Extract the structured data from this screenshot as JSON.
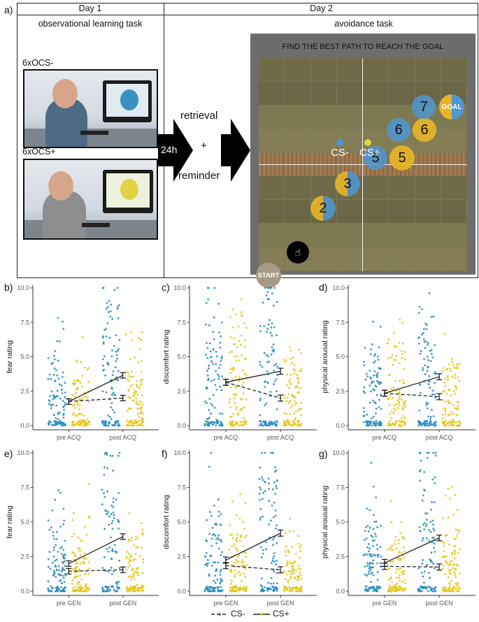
{
  "top": {
    "panel_label": "a)",
    "day1": "Day 1",
    "day2": "Day 2",
    "day1_task": "observational learning task",
    "day2_task": "avoidance task",
    "ocs_minus": "6xOCS-",
    "ocs_plus": "6xOCS+",
    "time": "24h",
    "retrieval": "retrieval",
    "plus": "+",
    "reminder": "reminder",
    "game_title": "FIND THE BEST PATH TO REACH THE GOAL",
    "cs_minus": "CS-",
    "cs_plus": "CS+",
    "start": "START",
    "goal": "GOAL",
    "steps": [
      "2",
      "3",
      "5",
      "5",
      "6",
      "6",
      "7"
    ]
  },
  "legend": {
    "cs_minus": "CS-",
    "cs_plus": "CS+"
  },
  "colors": {
    "cs_minus": "#2b8cbe",
    "cs_plus": "#e6c619",
    "mean_line": "#222222",
    "panel_border": "#222222",
    "game_bg": "#6d6d6d"
  },
  "chart_data": [
    {
      "panel": "b)",
      "type": "scatter",
      "ylabel": "fear rating",
      "categories": [
        "pre ACQ",
        "post ACQ"
      ],
      "ylim": [
        0,
        10
      ],
      "yticks": [
        "0.0",
        "2.5",
        "5.0",
        "7.5",
        "10.0"
      ],
      "series": [
        {
          "name": "CS-",
          "mean": [
            1.75,
            3.65
          ],
          "err": [
            0.2,
            0.2
          ]
        },
        {
          "name": "CS+",
          "mean": [
            1.75,
            2.0
          ],
          "err": [
            0.2,
            0.2
          ]
        }
      ]
    },
    {
      "panel": "c)",
      "type": "scatter",
      "ylabel": "discomfort rating",
      "categories": [
        "pre ACQ",
        "post ACQ"
      ],
      "ylim": [
        0,
        10
      ],
      "yticks": [
        "0.0",
        "2.5",
        "5.0",
        "7.5",
        "10.0"
      ],
      "series": [
        {
          "name": "CS-",
          "mean": [
            3.15,
            3.95
          ],
          "err": [
            0.22,
            0.22
          ]
        },
        {
          "name": "CS+",
          "mean": [
            3.15,
            2.0
          ],
          "err": [
            0.22,
            0.22
          ]
        }
      ]
    },
    {
      "panel": "d)",
      "type": "scatter",
      "ylabel": "physical arousal rating",
      "categories": [
        "pre ACQ",
        "post ACQ"
      ],
      "ylim": [
        0,
        10
      ],
      "yticks": [
        "0.0",
        "2.5",
        "5.0",
        "7.5",
        "10.0"
      ],
      "series": [
        {
          "name": "CS-",
          "mean": [
            2.35,
            3.55
          ],
          "err": [
            0.22,
            0.22
          ]
        },
        {
          "name": "CS+",
          "mean": [
            2.35,
            2.1
          ],
          "err": [
            0.22,
            0.22
          ]
        }
      ]
    },
    {
      "panel": "e)",
      "type": "scatter",
      "ylabel": "fear rating",
      "categories": [
        "pre GEN",
        "post GEN"
      ],
      "ylim": [
        0,
        10
      ],
      "yticks": [
        "0.0",
        "2.5",
        "5.0",
        "7.5",
        "10.0"
      ],
      "series": [
        {
          "name": "CS-",
          "mean": [
            2.0,
            3.95
          ],
          "err": [
            0.2,
            0.2
          ]
        },
        {
          "name": "CS+",
          "mean": [
            1.45,
            1.55
          ],
          "err": [
            0.2,
            0.2
          ]
        }
      ]
    },
    {
      "panel": "f)",
      "type": "scatter",
      "ylabel": "discomfort rating",
      "categories": [
        "pre GEN",
        "post GEN"
      ],
      "ylim": [
        0,
        10
      ],
      "yticks": [
        "0.0",
        "2.5",
        "5.0",
        "7.5",
        "10.0"
      ],
      "series": [
        {
          "name": "CS-",
          "mean": [
            2.25,
            4.2
          ],
          "err": [
            0.22,
            0.22
          ]
        },
        {
          "name": "CS+",
          "mean": [
            1.85,
            1.55
          ],
          "err": [
            0.22,
            0.22
          ]
        }
      ]
    },
    {
      "panel": "g)",
      "type": "scatter",
      "ylabel": "physical arousal rating",
      "categories": [
        "pre GEN",
        "post GEN"
      ],
      "ylim": [
        0,
        10
      ],
      "yticks": [
        "0.0",
        "2.5",
        "5.0",
        "7.5",
        "10.0"
      ],
      "series": [
        {
          "name": "CS-",
          "mean": [
            2.05,
            3.85
          ],
          "err": [
            0.25,
            0.2
          ]
        },
        {
          "name": "CS+",
          "mean": [
            1.8,
            1.75
          ],
          "err": [
            0.22,
            0.22
          ]
        }
      ]
    }
  ]
}
